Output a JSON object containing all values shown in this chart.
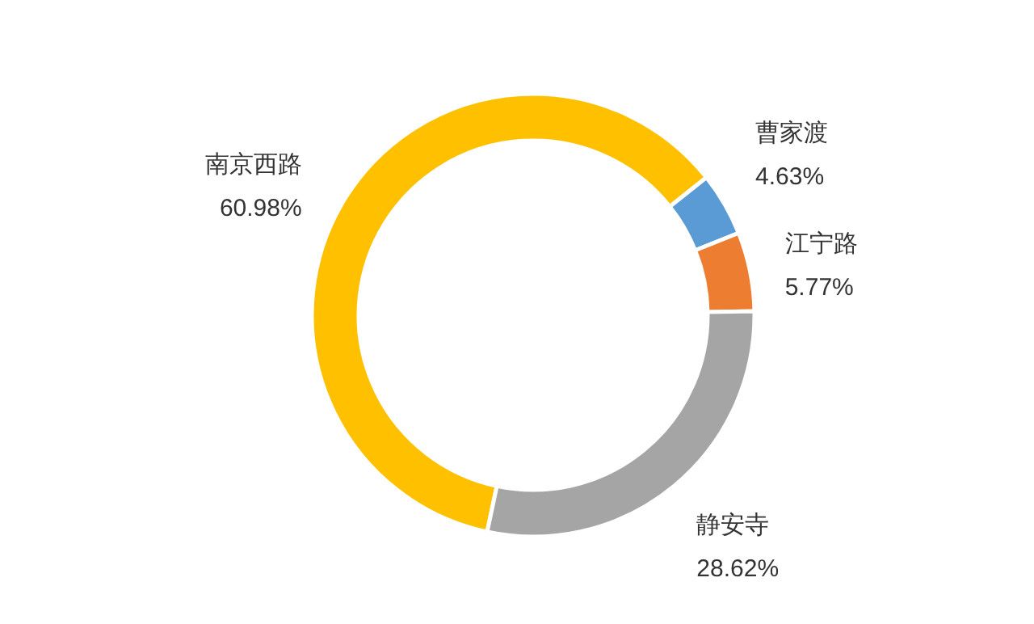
{
  "chart_data": {
    "type": "donut",
    "categories": [
      "南京西路",
      "曹家渡",
      "江宁路",
      "静安寺"
    ],
    "values": [
      60.98,
      4.63,
      5.77,
      28.62
    ],
    "colors": [
      "#ffc000",
      "#5b9bd5",
      "#ed7d31",
      "#a5a5a5"
    ],
    "value_labels": [
      "60.98%",
      "4.63%",
      "5.77%",
      "28.62%"
    ]
  }
}
